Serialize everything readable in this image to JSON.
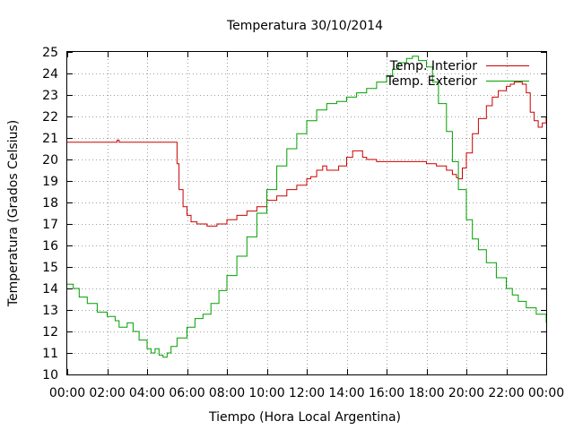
{
  "chart_data": {
    "type": "line",
    "title": "Temperatura 30/10/2014",
    "xlabel": "Tiempo (Hora Local Argentina)",
    "ylabel": "Temperatura (Grados Celsius)",
    "xlim": [
      0,
      24
    ],
    "ylim": [
      10,
      25
    ],
    "x_tick_values": [
      0,
      2,
      4,
      6,
      8,
      10,
      12,
      14,
      16,
      18,
      20,
      22,
      24
    ],
    "x_tick_labels": [
      "00:00",
      "02:00",
      "04:00",
      "06:00",
      "08:00",
      "10:00",
      "12:00",
      "14:00",
      "16:00",
      "18:00",
      "20:00",
      "22:00",
      "00:00"
    ],
    "y_tick_values": [
      10,
      11,
      12,
      13,
      14,
      15,
      16,
      17,
      18,
      19,
      20,
      21,
      22,
      23,
      24,
      25
    ],
    "y_tick_labels": [
      "10",
      "11",
      "12",
      "13",
      "14",
      "15",
      "16",
      "17",
      "18",
      "19",
      "20",
      "21",
      "22",
      "23",
      "24",
      "25"
    ],
    "grid": true,
    "legend_position": "top-right",
    "series": [
      {
        "name": "Temp. Interior",
        "color": "#cc0000",
        "x": [
          0,
          0.5,
          1,
          1.5,
          2,
          2.4,
          2.5,
          2.6,
          3,
          3.5,
          4,
          4.5,
          5,
          5.3,
          5.4,
          5.5,
          5.6,
          5.8,
          6,
          6.2,
          6.5,
          7,
          7.5,
          8,
          8.5,
          9,
          9.5,
          10,
          10.5,
          11,
          11.5,
          12,
          12.2,
          12.5,
          12.8,
          13,
          13.3,
          13.6,
          14,
          14.3,
          14.5,
          14.8,
          15,
          15.5,
          16,
          16.5,
          17,
          17.5,
          18,
          18.5,
          19,
          19.3,
          19.5,
          19.6,
          19.8,
          20,
          20.3,
          20.6,
          21,
          21.3,
          21.6,
          22,
          22.2,
          22.4,
          22.6,
          22.8,
          23,
          23.2,
          23.4,
          23.6,
          23.8,
          24
        ],
        "y": [
          20.8,
          20.8,
          20.8,
          20.8,
          20.8,
          20.8,
          20.9,
          20.8,
          20.8,
          20.8,
          20.8,
          20.8,
          20.8,
          20.8,
          20.8,
          19.8,
          18.6,
          17.8,
          17.4,
          17.1,
          17.0,
          16.9,
          17.0,
          17.2,
          17.4,
          17.6,
          17.8,
          18.1,
          18.3,
          18.6,
          18.8,
          19.1,
          19.2,
          19.5,
          19.7,
          19.5,
          19.5,
          19.7,
          20.1,
          20.4,
          20.4,
          20.1,
          20.0,
          19.9,
          19.9,
          19.9,
          19.9,
          19.9,
          19.8,
          19.7,
          19.5,
          19.3,
          19.15,
          19.1,
          19.6,
          20.3,
          21.2,
          21.9,
          22.5,
          22.9,
          23.2,
          23.4,
          23.5,
          23.6,
          23.6,
          23.5,
          23.1,
          22.2,
          21.8,
          21.5,
          21.7,
          22.0
        ]
      },
      {
        "name": "Temp. Exterior",
        "color": "#00a000",
        "x": [
          0,
          0.3,
          0.6,
          1,
          1.5,
          2,
          2.4,
          2.6,
          3,
          3.3,
          3.6,
          4,
          4.2,
          4.4,
          4.6,
          4.8,
          5,
          5.2,
          5.5,
          6,
          6.4,
          6.8,
          7.2,
          7.6,
          8,
          8.5,
          9,
          9.5,
          10,
          10.5,
          11,
          11.5,
          12,
          12.5,
          13,
          13.5,
          14,
          14.5,
          15,
          15.5,
          16,
          16.3,
          16.6,
          17,
          17.3,
          17.6,
          18,
          18.3,
          18.6,
          19,
          19.3,
          19.6,
          20,
          20.3,
          20.6,
          21,
          21.5,
          22,
          22.3,
          22.6,
          23,
          23.5,
          24
        ],
        "y": [
          14.2,
          14.0,
          13.6,
          13.3,
          12.9,
          12.7,
          12.5,
          12.2,
          12.4,
          12.0,
          11.6,
          11.2,
          11.0,
          11.2,
          10.9,
          10.8,
          11.0,
          11.3,
          11.7,
          12.2,
          12.6,
          12.8,
          13.3,
          13.9,
          14.6,
          15.5,
          16.4,
          17.5,
          18.6,
          19.7,
          20.5,
          21.2,
          21.8,
          22.3,
          22.6,
          22.7,
          22.9,
          23.1,
          23.3,
          23.6,
          23.9,
          24.2,
          24.5,
          24.7,
          24.8,
          24.6,
          24.3,
          23.6,
          22.6,
          21.3,
          19.9,
          18.6,
          17.2,
          16.3,
          15.8,
          15.2,
          14.5,
          14.0,
          13.7,
          13.4,
          13.1,
          12.8,
          12.4
        ]
      }
    ]
  }
}
